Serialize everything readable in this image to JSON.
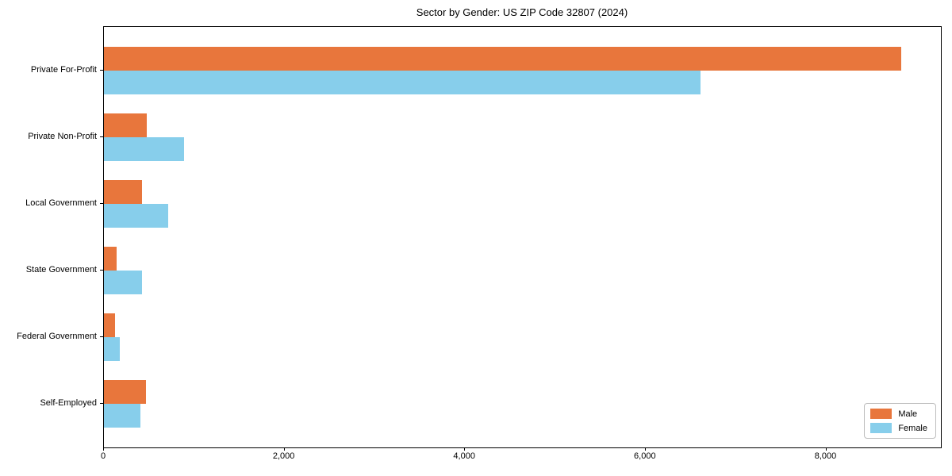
{
  "chart_data": {
    "type": "bar",
    "orientation": "horizontal",
    "title": "Sector by Gender: US ZIP Code 32807 (2024)",
    "categories": [
      "Private For-Profit",
      "Private Non-Profit",
      "Local Government",
      "State Government",
      "Federal Government",
      "Self-Employed"
    ],
    "series": [
      {
        "name": "Male",
        "color": "#e8763c",
        "values": [
          8830,
          470,
          420,
          137,
          119,
          464
        ]
      },
      {
        "name": "Female",
        "color": "#87ceeb",
        "values": [
          6610,
          883,
          713,
          424,
          171,
          400
        ]
      }
    ],
    "xlabel": "",
    "ylabel": "",
    "xlim": [
      0,
      9270
    ],
    "xticks": {
      "values": [
        0,
        2000,
        4000,
        6000,
        8000
      ],
      "labels": [
        "0",
        "2,000",
        "4,000",
        "6,000",
        "8,000"
      ]
    },
    "grid": false,
    "legend": {
      "position": "lower right"
    }
  }
}
